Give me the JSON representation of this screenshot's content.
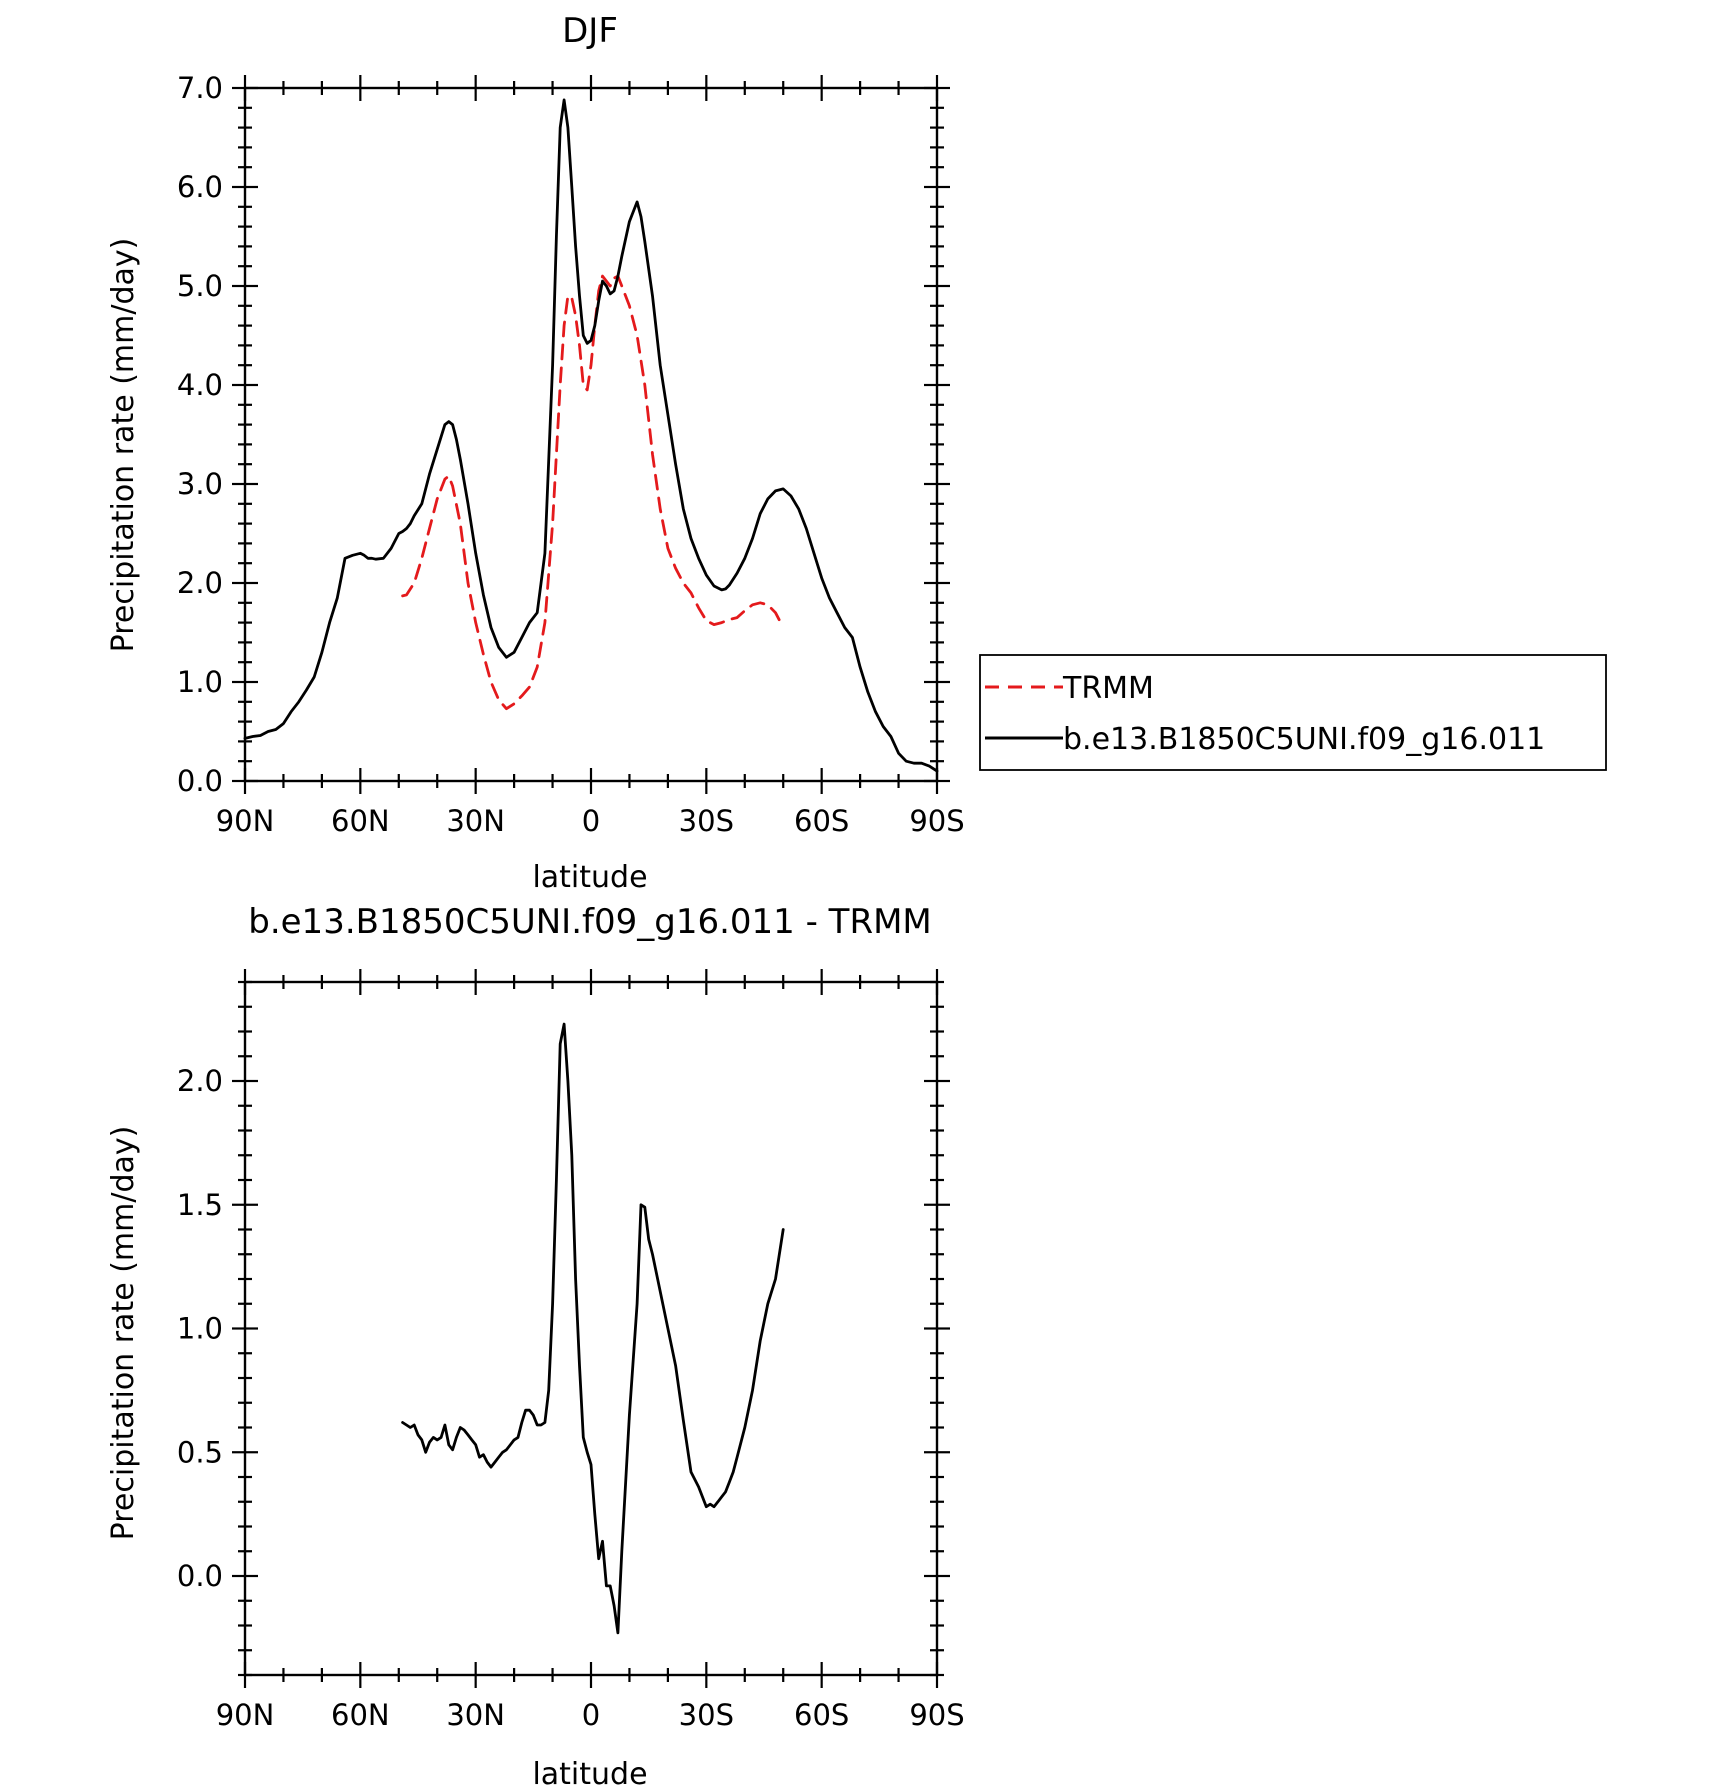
{
  "chart_data": [
    {
      "type": "line",
      "title": "DJF",
      "xlabel": "latitude",
      "ylabel": "Precipitation rate (mm/day)",
      "xlim": [
        90,
        -90
      ],
      "ylim": [
        0,
        7
      ],
      "xticks": [
        {
          "v": 90,
          "label": "90N"
        },
        {
          "v": 60,
          "label": "60N"
        },
        {
          "v": 30,
          "label": "30N"
        },
        {
          "v": 0,
          "label": "0"
        },
        {
          "v": -30,
          "label": "30S"
        },
        {
          "v": -60,
          "label": "60S"
        },
        {
          "v": -90,
          "label": "90S"
        }
      ],
      "yticks": [
        {
          "v": 0,
          "label": "0.0"
        },
        {
          "v": 1,
          "label": "1.0"
        },
        {
          "v": 2,
          "label": "2.0"
        },
        {
          "v": 3,
          "label": "3.0"
        },
        {
          "v": 4,
          "label": "4.0"
        },
        {
          "v": 5,
          "label": "5.0"
        },
        {
          "v": 6,
          "label": "6.0"
        },
        {
          "v": 7,
          "label": "7.0"
        }
      ],
      "legend_position": "right",
      "series": [
        {
          "name": "TRMM",
          "color": "#e41a1c",
          "dash": "dashed",
          "x": [
            49,
            48,
            46,
            44,
            42,
            40,
            38,
            37,
            36,
            34,
            32,
            30,
            28,
            26,
            24,
            22,
            20,
            18,
            16,
            14,
            12,
            10,
            8,
            7,
            6,
            5,
            4,
            3,
            2,
            1,
            0,
            -1,
            -2,
            -3,
            -4,
            -5,
            -6,
            -7,
            -8,
            -10,
            -12,
            -14,
            -16,
            -18,
            -20,
            -22,
            -24,
            -26,
            -28,
            -30,
            -32,
            -34,
            -36,
            -38,
            -40,
            -42,
            -44,
            -46,
            -48,
            -50
          ],
          "y": [
            1.87,
            1.88,
            2.0,
            2.25,
            2.55,
            2.85,
            3.05,
            3.08,
            2.98,
            2.6,
            2.0,
            1.6,
            1.28,
            1.0,
            0.82,
            0.73,
            0.78,
            0.86,
            0.95,
            1.15,
            1.6,
            2.6,
            4.0,
            4.6,
            4.9,
            4.88,
            4.7,
            4.4,
            4.0,
            3.95,
            4.2,
            4.6,
            4.95,
            5.1,
            5.05,
            5.0,
            5.08,
            5.1,
            5.0,
            4.8,
            4.5,
            4.0,
            3.3,
            2.75,
            2.35,
            2.15,
            2.0,
            1.9,
            1.75,
            1.62,
            1.58,
            1.6,
            1.63,
            1.65,
            1.72,
            1.78,
            1.8,
            1.78,
            1.7,
            1.55
          ]
        },
        {
          "name": "b.e13.B1850C5UNI.f09_g16.011",
          "color": "#000000",
          "dash": "solid",
          "x": [
            90,
            88,
            86,
            84,
            82,
            80,
            78,
            76,
            74,
            72,
            70,
            68,
            66,
            64,
            62,
            60,
            59,
            58,
            57,
            56,
            54,
            52,
            50,
            49,
            48,
            47,
            46,
            44,
            42,
            40,
            38,
            37,
            36,
            35,
            34,
            32,
            30,
            28,
            26,
            24,
            22,
            20,
            18,
            16,
            14,
            12,
            10,
            9,
            8,
            7,
            6,
            5,
            4,
            3,
            2,
            1,
            0,
            -1,
            -2,
            -3,
            -4,
            -5,
            -6,
            -7,
            -8,
            -10,
            -12,
            -13,
            -14,
            -16,
            -18,
            -20,
            -22,
            -24,
            -26,
            -28,
            -30,
            -32,
            -34,
            -35,
            -36,
            -38,
            -40,
            -42,
            -44,
            -46,
            -48,
            -50,
            -52,
            -54,
            -56,
            -58,
            -60,
            -62,
            -64,
            -66,
            -68,
            -70,
            -72,
            -74,
            -76,
            -78,
            -80,
            -82,
            -84,
            -86,
            -88,
            -90
          ],
          "y": [
            0.43,
            0.45,
            0.46,
            0.5,
            0.52,
            0.58,
            0.7,
            0.8,
            0.92,
            1.05,
            1.3,
            1.6,
            1.85,
            2.25,
            2.28,
            2.3,
            2.28,
            2.25,
            2.25,
            2.24,
            2.25,
            2.35,
            2.5,
            2.52,
            2.55,
            2.6,
            2.68,
            2.8,
            3.1,
            3.35,
            3.6,
            3.63,
            3.6,
            3.45,
            3.25,
            2.8,
            2.3,
            1.88,
            1.55,
            1.35,
            1.25,
            1.3,
            1.45,
            1.6,
            1.7,
            2.3,
            4.2,
            5.5,
            6.6,
            6.88,
            6.6,
            6.0,
            5.4,
            4.9,
            4.5,
            4.42,
            4.45,
            4.6,
            4.85,
            5.05,
            5.0,
            4.92,
            4.95,
            5.1,
            5.3,
            5.65,
            5.85,
            5.7,
            5.45,
            4.9,
            4.2,
            3.7,
            3.2,
            2.75,
            2.45,
            2.25,
            2.08,
            1.97,
            1.93,
            1.94,
            1.98,
            2.1,
            2.25,
            2.45,
            2.7,
            2.85,
            2.93,
            2.95,
            2.88,
            2.75,
            2.55,
            2.3,
            2.05,
            1.85,
            1.7,
            1.55,
            1.45,
            1.15,
            0.9,
            0.7,
            0.55,
            0.45,
            0.28,
            0.2,
            0.18,
            0.18,
            0.15,
            0.1
          ]
        }
      ]
    },
    {
      "type": "line",
      "title": "b.e13.B1850C5UNI.f09_g16.011 - TRMM",
      "xlabel": "latitude",
      "ylabel": "Precipitation rate (mm/day)",
      "xlim": [
        90,
        -90
      ],
      "ylim": [
        -0.4,
        2.4
      ],
      "xticks": [
        {
          "v": 90,
          "label": "90N"
        },
        {
          "v": 60,
          "label": "60N"
        },
        {
          "v": 30,
          "label": "30N"
        },
        {
          "v": 0,
          "label": "0"
        },
        {
          "v": -30,
          "label": "30S"
        },
        {
          "v": -60,
          "label": "60S"
        },
        {
          "v": -90,
          "label": "90S"
        }
      ],
      "yticks": [
        {
          "v": 0,
          "label": "0.0"
        },
        {
          "v": 0.5,
          "label": "0.5"
        },
        {
          "v": 1.0,
          "label": "1.0"
        },
        {
          "v": 1.5,
          "label": "1.5"
        },
        {
          "v": 2.0,
          "label": "2.0"
        }
      ],
      "series": [
        {
          "color": "#000000",
          "dash": "solid",
          "x": [
            49,
            48,
            47,
            46,
            45,
            44,
            43,
            42,
            41,
            40,
            39,
            38,
            37,
            36,
            35,
            34,
            33,
            32,
            31,
            30,
            29,
            28,
            27,
            26,
            25,
            24,
            23,
            22,
            21,
            20,
            19,
            18,
            17,
            16,
            15,
            14,
            13,
            12,
            11,
            10,
            9,
            8,
            7,
            6,
            5,
            4,
            3,
            2,
            1,
            0,
            -1,
            -2,
            -3,
            -4,
            -5,
            -6,
            -7,
            -8,
            -10,
            -12,
            -13,
            -14,
            -15,
            -16,
            -18,
            -20,
            -22,
            -24,
            -26,
            -28,
            -30,
            -31,
            -32,
            -33,
            -34,
            -35,
            -36,
            -37,
            -38,
            -40,
            -42,
            -44,
            -46,
            -48,
            -50
          ],
          "y": [
            0.62,
            0.61,
            0.6,
            0.61,
            0.57,
            0.55,
            0.5,
            0.54,
            0.56,
            0.55,
            0.56,
            0.61,
            0.53,
            0.51,
            0.56,
            0.6,
            0.59,
            0.57,
            0.55,
            0.53,
            0.48,
            0.49,
            0.46,
            0.44,
            0.46,
            0.48,
            0.5,
            0.51,
            0.53,
            0.55,
            0.56,
            0.62,
            0.67,
            0.67,
            0.65,
            0.61,
            0.61,
            0.62,
            0.75,
            1.1,
            1.6,
            2.15,
            2.23,
            2.0,
            1.7,
            1.2,
            0.85,
            0.56,
            0.5,
            0.45,
            0.25,
            0.07,
            0.14,
            -0.04,
            -0.04,
            -0.12,
            -0.23,
            0.1,
            0.65,
            1.1,
            1.5,
            1.49,
            1.36,
            1.3,
            1.15,
            1.0,
            0.85,
            0.63,
            0.42,
            0.36,
            0.28,
            0.29,
            0.28,
            0.3,
            0.32,
            0.34,
            0.38,
            0.42,
            0.48,
            0.6,
            0.75,
            0.95,
            1.1,
            1.2,
            1.4
          ]
        }
      ]
    }
  ]
}
